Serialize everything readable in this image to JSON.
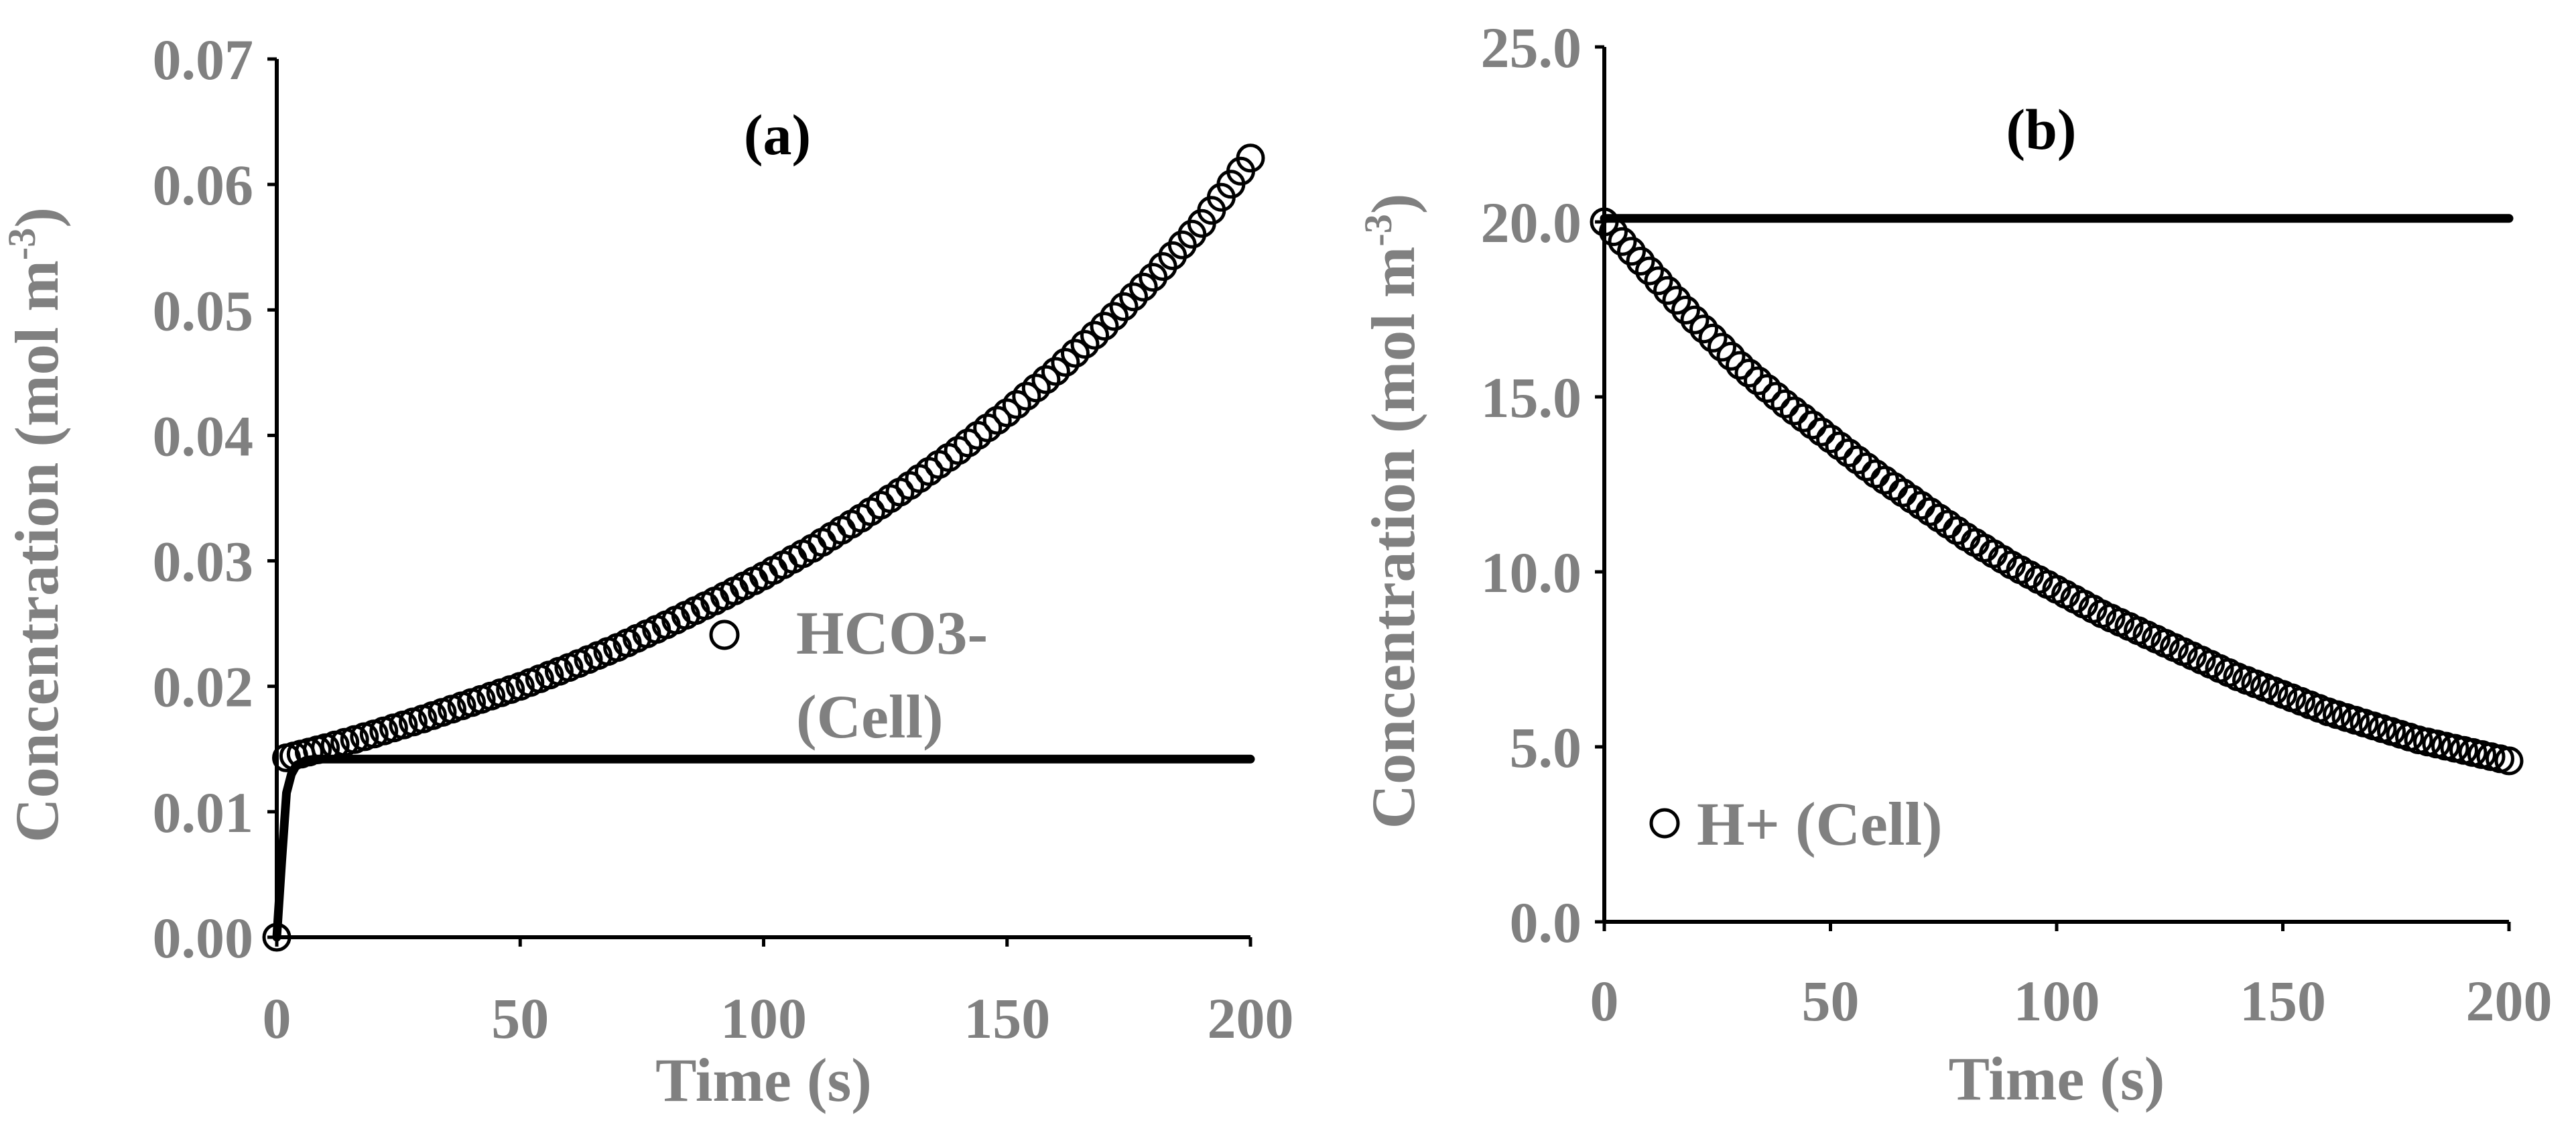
{
  "chart_data": [
    {
      "id": "a",
      "type": "scatter",
      "panel_label": "(a)",
      "xlabel": "Time (s)",
      "ylabel": "Concentration (mol m",
      "ylabel_sup": "-3",
      "ylabel_close": ")",
      "xlim": [
        0,
        200
      ],
      "ylim": [
        0,
        0.07
      ],
      "xticks": [
        0,
        50,
        100,
        150,
        200
      ],
      "yticks": [
        0.0,
        0.01,
        0.02,
        0.03,
        0.04,
        0.05,
        0.06,
        0.07
      ],
      "ytick_decimals": 2,
      "grid": false,
      "legend": {
        "position": "center",
        "lines": [
          "HCO3-",
          "(Cell)"
        ],
        "marker": "open-circle"
      },
      "series": [
        {
          "name": "HCO3- (Cell)",
          "kind": "markers",
          "x": [
            0,
            2,
            5,
            10,
            20,
            30,
            40,
            50,
            60,
            70,
            80,
            90,
            100,
            110,
            120,
            130,
            140,
            150,
            160,
            170,
            180,
            190,
            200
          ],
          "y": [
            0.0,
            0.0143,
            0.0146,
            0.0151,
            0.0162,
            0.0174,
            0.0187,
            0.02,
            0.0215,
            0.0231,
            0.0249,
            0.0268,
            0.0288,
            0.031,
            0.0334,
            0.036,
            0.0388,
            0.0418,
            0.0451,
            0.0487,
            0.0526,
            0.0569,
            0.0621
          ]
        },
        {
          "name": "HCO3- model",
          "kind": "line",
          "x": [
            0,
            1,
            2,
            3,
            4,
            6,
            8,
            10,
            200
          ],
          "y": [
            0.0,
            0.006,
            0.0115,
            0.013,
            0.0137,
            0.0141,
            0.0142,
            0.0142,
            0.0142
          ]
        }
      ]
    },
    {
      "id": "b",
      "type": "scatter",
      "panel_label": "(b)",
      "xlabel": "Time (s)",
      "ylabel": "Concentration (mol m",
      "ylabel_sup": "-3",
      "ylabel_close": ")",
      "xlim": [
        0,
        200
      ],
      "ylim": [
        0,
        25
      ],
      "xticks": [
        0,
        50,
        100,
        150,
        200
      ],
      "yticks": [
        0.0,
        5.0,
        10.0,
        15.0,
        20.0,
        25.0
      ],
      "ytick_decimals": 1,
      "grid": false,
      "legend": {
        "position": "bottom-left",
        "lines": [
          "H+ (Cell)"
        ],
        "marker": "open-circle"
      },
      "series": [
        {
          "name": "H+ (Cell)",
          "kind": "markers",
          "x": [
            0,
            10,
            20,
            30,
            40,
            50,
            60,
            70,
            80,
            90,
            100,
            110,
            120,
            130,
            140,
            150,
            160,
            170,
            180,
            190,
            200
          ],
          "y": [
            20.0,
            18.6,
            17.2,
            15.9,
            14.8,
            13.8,
            12.8,
            11.9,
            11.0,
            10.2,
            9.5,
            8.8,
            8.2,
            7.6,
            7.0,
            6.5,
            6.0,
            5.6,
            5.2,
            4.9,
            4.6
          ]
        },
        {
          "name": "H+ model",
          "kind": "line",
          "x": [
            0,
            200
          ],
          "y": [
            20.1,
            20.1
          ]
        }
      ]
    }
  ]
}
